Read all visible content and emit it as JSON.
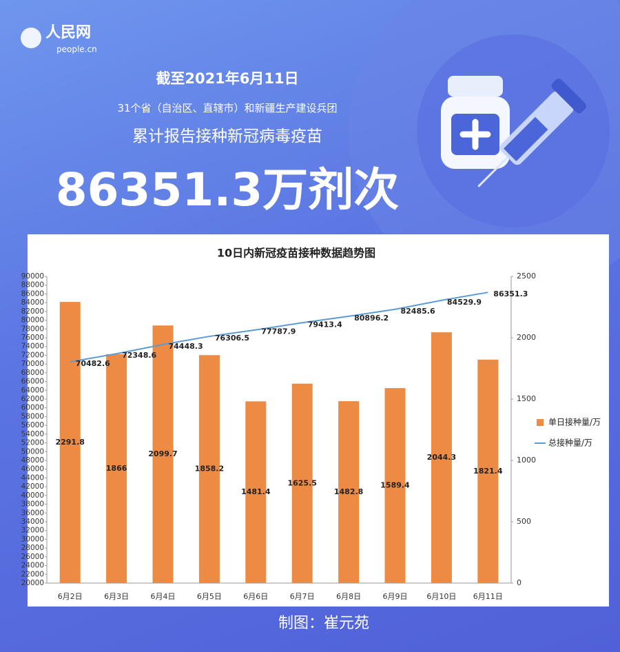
{
  "header": {
    "logo_cn": "人民网",
    "logo_en": "people.cn",
    "date": "截至2021年6月11日",
    "line1": "31个省（自治区、直辖市）和新疆生产建设兵团",
    "line2": "累计报告接种新冠病毒疫苗",
    "total": "86351.3万剂次"
  },
  "chart_data": {
    "type": "bar",
    "title": "10日内新冠疫苗接种数据趋势图",
    "categories": [
      "6月2日",
      "6月3日",
      "6月4日",
      "6月5日",
      "6月6日",
      "6月7日",
      "6月8日",
      "6月9日",
      "6月10日",
      "6月11日"
    ],
    "series": [
      {
        "name": "单日接种量/万",
        "color": "#ed8b45",
        "type": "bar",
        "axis": "y2",
        "values": [
          2291.8,
          1866,
          2099.7,
          1858.2,
          1481.4,
          1625.5,
          1482.8,
          1589.4,
          2044.3,
          1821.4
        ]
      },
      {
        "name": "总接种量/万",
        "color": "#5b9bd5",
        "type": "line",
        "values": [
          70482.6,
          72348.6,
          74448.3,
          76306.5,
          77787.9,
          79413.4,
          80896.2,
          82485.6,
          84529.9,
          86351.3
        ]
      }
    ],
    "ylim": [
      20000,
      90000
    ],
    "yticks": [
      20000,
      22000,
      24000,
      26000,
      28000,
      30000,
      32000,
      34000,
      36000,
      38000,
      40000,
      42000,
      44000,
      46000,
      48000,
      50000,
      52000,
      54000,
      56000,
      58000,
      60000,
      62000,
      64000,
      66000,
      68000,
      70000,
      72000,
      74000,
      76000,
      78000,
      80000,
      82000,
      84000,
      86000,
      88000,
      90000
    ],
    "y2lim": [
      0,
      2500
    ],
    "y2ticks": [
      0,
      500,
      1000,
      1500,
      2000,
      2500
    ],
    "grid": false,
    "legend": "right"
  },
  "footer": {
    "credit": "制图：崔元苑"
  }
}
